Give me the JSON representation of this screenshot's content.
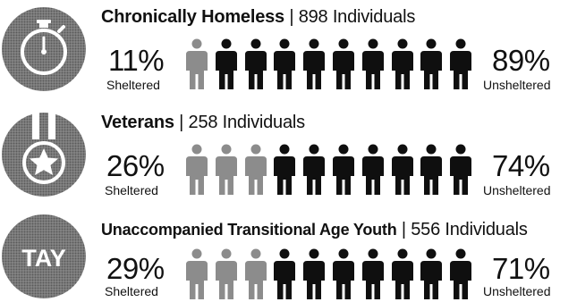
{
  "sections": [
    {
      "name_bold": "Chronically Homeless",
      "separator": "|",
      "count_text": "898 Individuals",
      "sheltered_pct": "11%",
      "sheltered_label": "Sheltered",
      "unsheltered_pct": "89%",
      "unsheltered_label": "Unsheltered",
      "sheltered_figures": 1,
      "icon": "stopwatch-icon"
    },
    {
      "name_bold": "Veterans",
      "separator": "|",
      "count_text": "258 Individuals",
      "sheltered_pct": "26%",
      "sheltered_label": "Sheltered",
      "unsheltered_pct": "74%",
      "unsheltered_label": "Unsheltered",
      "sheltered_figures": 3,
      "icon": "medal-star-icon"
    },
    {
      "name_bold": "Unaccompanied Transitional Age Youth",
      "separator": "|",
      "count_text": "556 Individuals",
      "sheltered_pct": "29%",
      "sheltered_label": "Sheltered",
      "unsheltered_pct": "71%",
      "unsheltered_label": "Unsheltered",
      "sheltered_figures": 3,
      "icon": "tay-badge-icon",
      "icon_text": "TAY"
    }
  ],
  "figures_per_row": 10,
  "colors": {
    "sheltered": "#8c8c8c",
    "unsheltered": "#0f0f0f",
    "badge": "#8a8a8a"
  }
}
